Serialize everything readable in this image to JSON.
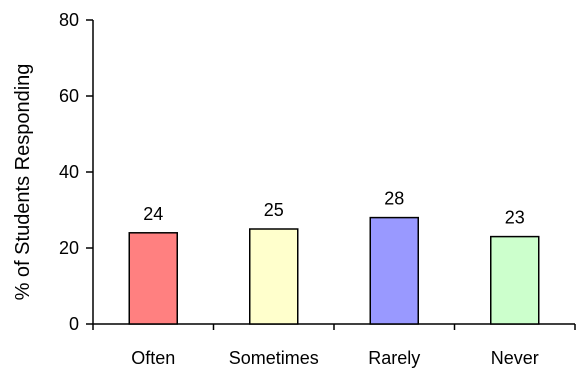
{
  "chart_data": {
    "type": "bar",
    "title": "",
    "xlabel": "",
    "ylabel": "% of Students Responding",
    "categories": [
      "Often",
      "Sometimes",
      "Rarely",
      "Never"
    ],
    "values": [
      24,
      25,
      28,
      23
    ],
    "data_labels": [
      "24",
      "25",
      "28",
      "23"
    ],
    "bar_colors": [
      "#ff8080",
      "#ffffcc",
      "#9999ff",
      "#ccffcc"
    ],
    "ylim": [
      0,
      80
    ],
    "yticks": [
      0,
      20,
      40,
      60,
      80
    ],
    "ytick_labels": [
      "0",
      "20",
      "40",
      "60",
      "80"
    ],
    "grid": false,
    "legend": "none"
  }
}
